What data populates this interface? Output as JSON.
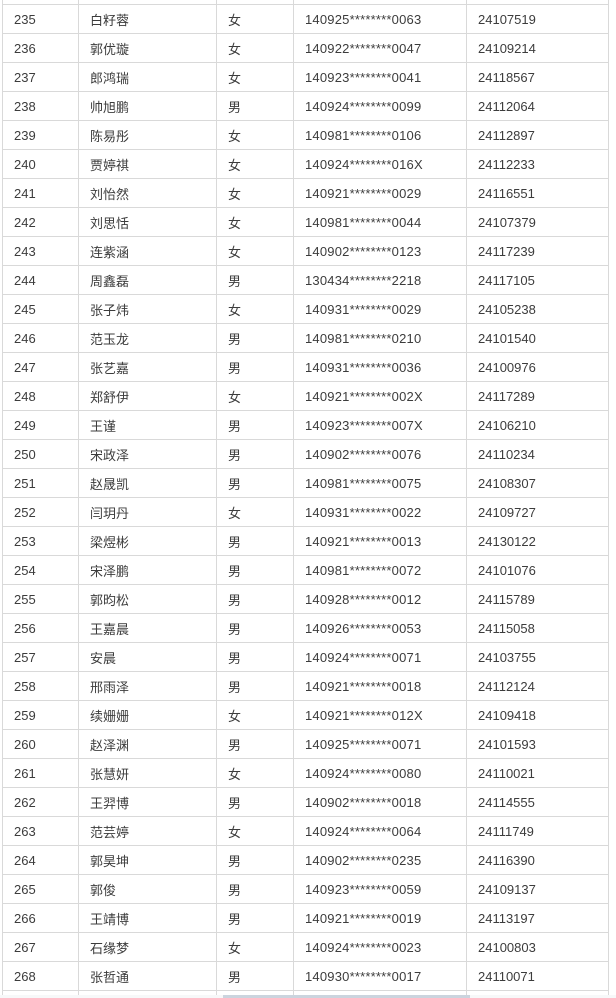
{
  "table": {
    "rows": [
      {
        "no": "235",
        "name": "白籽蓉",
        "gender": "女",
        "id": "140925********0063",
        "code": "24107519"
      },
      {
        "no": "236",
        "name": "郭优璇",
        "gender": "女",
        "id": "140922********0047",
        "code": "24109214"
      },
      {
        "no": "237",
        "name": "郎鸿瑞",
        "gender": "女",
        "id": "140923********0041",
        "code": "24118567"
      },
      {
        "no": "238",
        "name": "帅旭鹏",
        "gender": "男",
        "id": "140924********0099",
        "code": "24112064"
      },
      {
        "no": "239",
        "name": "陈易彤",
        "gender": "女",
        "id": "140981********0106",
        "code": "24112897"
      },
      {
        "no": "240",
        "name": "贾婷祺",
        "gender": "女",
        "id": "140924********016X",
        "code": "24112233"
      },
      {
        "no": "241",
        "name": "刘怡然",
        "gender": "女",
        "id": "140921********0029",
        "code": "24116551"
      },
      {
        "no": "242",
        "name": "刘思恬",
        "gender": "女",
        "id": "140981********0044",
        "code": "24107379"
      },
      {
        "no": "243",
        "name": "连紫涵",
        "gender": "女",
        "id": "140902********0123",
        "code": "24117239"
      },
      {
        "no": "244",
        "name": "周鑫磊",
        "gender": "男",
        "id": "130434********2218",
        "code": "24117105"
      },
      {
        "no": "245",
        "name": "张子炜",
        "gender": "女",
        "id": "140931********0029",
        "code": "24105238"
      },
      {
        "no": "246",
        "name": "范玉龙",
        "gender": "男",
        "id": "140981********0210",
        "code": "24101540"
      },
      {
        "no": "247",
        "name": "张艺嘉",
        "gender": "男",
        "id": "140931********0036",
        "code": "24100976"
      },
      {
        "no": "248",
        "name": "郑舒伊",
        "gender": "女",
        "id": "140921********002X",
        "code": "24117289"
      },
      {
        "no": "249",
        "name": "王谨",
        "gender": "男",
        "id": "140923********007X",
        "code": "24106210"
      },
      {
        "no": "250",
        "name": "宋政泽",
        "gender": "男",
        "id": "140902********0076",
        "code": "24110234"
      },
      {
        "no": "251",
        "name": "赵晟凯",
        "gender": "男",
        "id": "140981********0075",
        "code": "24108307"
      },
      {
        "no": "252",
        "name": "闫玥丹",
        "gender": "女",
        "id": "140931********0022",
        "code": "24109727"
      },
      {
        "no": "253",
        "name": "梁煜彬",
        "gender": "男",
        "id": "140921********0013",
        "code": "24130122"
      },
      {
        "no": "254",
        "name": "宋泽鹏",
        "gender": "男",
        "id": "140981********0072",
        "code": "24101076"
      },
      {
        "no": "255",
        "name": "郭昀松",
        "gender": "男",
        "id": "140928********0012",
        "code": "24115789"
      },
      {
        "no": "256",
        "name": "王嘉晨",
        "gender": "男",
        "id": "140926********0053",
        "code": "24115058"
      },
      {
        "no": "257",
        "name": "安晨",
        "gender": "男",
        "id": "140924********0071",
        "code": "24103755"
      },
      {
        "no": "258",
        "name": "邢雨泽",
        "gender": "男",
        "id": "140921********0018",
        "code": "24112124"
      },
      {
        "no": "259",
        "name": "续姗姗",
        "gender": "女",
        "id": "140921********012X",
        "code": "24109418"
      },
      {
        "no": "260",
        "name": "赵泽渊",
        "gender": "男",
        "id": "140925********0071",
        "code": "24101593"
      },
      {
        "no": "261",
        "name": "张慧妍",
        "gender": "女",
        "id": "140924********0080",
        "code": "24110021"
      },
      {
        "no": "262",
        "name": "王羿博",
        "gender": "男",
        "id": "140902********0018",
        "code": "24114555"
      },
      {
        "no": "263",
        "name": "范芸婷",
        "gender": "女",
        "id": "140924********0064",
        "code": "24111749"
      },
      {
        "no": "264",
        "name": "郭昊坤",
        "gender": "男",
        "id": "140902********0235",
        "code": "24116390"
      },
      {
        "no": "265",
        "name": "郭俊",
        "gender": "男",
        "id": "140923********0059",
        "code": "24109137"
      },
      {
        "no": "266",
        "name": "王靖博",
        "gender": "男",
        "id": "140921********0019",
        "code": "24113197"
      },
      {
        "no": "267",
        "name": "石缘梦",
        "gender": "女",
        "id": "140924********0023",
        "code": "24100803"
      },
      {
        "no": "268",
        "name": "张哲通",
        "gender": "男",
        "id": "140930********0017",
        "code": "24110071"
      }
    ]
  },
  "colors": {
    "border": "#d9d9d9",
    "text": "#3c3c3c",
    "scrollbar_thumb": "#cbd4de",
    "scrollbar_track": "#f7f8f9"
  }
}
